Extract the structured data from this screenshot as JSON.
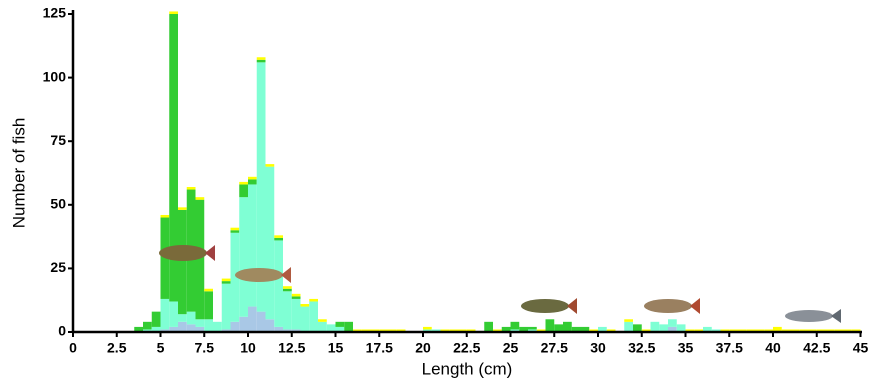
{
  "chart_data": {
    "type": "histogram",
    "stacked": true,
    "xlabel": "Length (cm)",
    "ylabel": "Number of fish",
    "bins": [
      0,
      0.5,
      1,
      1.5,
      2,
      2.5,
      3,
      3.5,
      4,
      4.5,
      5,
      5.5,
      6,
      6.5,
      7,
      7.5,
      8,
      8.5,
      9,
      9.5,
      10,
      10.5,
      11,
      11.5,
      12,
      12.5,
      13,
      13.5,
      14,
      14.5,
      15,
      15.5,
      16,
      16.5,
      17,
      17.5,
      18,
      18.5,
      19,
      19.5,
      20,
      20.5,
      21,
      21.5,
      22,
      22.5,
      23,
      23.5,
      24,
      24.5,
      25,
      25.5,
      26,
      26.5,
      27,
      27.5,
      28,
      28.5,
      29,
      29.5,
      30,
      30.5,
      31,
      31.5,
      32,
      32.5,
      33,
      33.5,
      34,
      34.5,
      35,
      35.5,
      36,
      36.5,
      37,
      37.5,
      38,
      38.5,
      39,
      39.5,
      40,
      40.5,
      41,
      41.5,
      42,
      42.5,
      43,
      43.5,
      44,
      44.5,
      45
    ],
    "series": [
      {
        "color": "#a9c8e6",
        "values": [
          0,
          0,
          0,
          0,
          0,
          0,
          0,
          0,
          0,
          0,
          1,
          2,
          4,
          3,
          2,
          0,
          0,
          1,
          4,
          6,
          10,
          8,
          5,
          2,
          1,
          1,
          0,
          0,
          0,
          0,
          0,
          0,
          0,
          0,
          0,
          0,
          0,
          0,
          0,
          0,
          0,
          0,
          0,
          0,
          0,
          0,
          0,
          0,
          0,
          0,
          0,
          0,
          0,
          0,
          0,
          0,
          0,
          0,
          0,
          0,
          0,
          0,
          0,
          0,
          0,
          0,
          0,
          0,
          2,
          0,
          0,
          0,
          0,
          0,
          0,
          0,
          0,
          0,
          0,
          0,
          0,
          0,
          0,
          0,
          0,
          0,
          0,
          0,
          0,
          0
        ]
      },
      {
        "color": "#7fffd4",
        "values": [
          0,
          0,
          0,
          0,
          0,
          0,
          0,
          0,
          1,
          2,
          12,
          10,
          3,
          5,
          3,
          5,
          4,
          18,
          35,
          47,
          48,
          98,
          60,
          34,
          15,
          12,
          10,
          12,
          4,
          3,
          2,
          0,
          0,
          0,
          0,
          0,
          0,
          0,
          0,
          0,
          1,
          1,
          0,
          0,
          0,
          0,
          0,
          0,
          0,
          0,
          1,
          0,
          1,
          0,
          0,
          0,
          0,
          0,
          0,
          0,
          2,
          0,
          0,
          4,
          0,
          0,
          4,
          3,
          3,
          3,
          0,
          0,
          2,
          1,
          0,
          0,
          0,
          0,
          0,
          0,
          0,
          0,
          0,
          0,
          0,
          0,
          0,
          0,
          0,
          0
        ]
      },
      {
        "color": "#33cc33",
        "values": [
          0,
          0,
          0,
          0,
          0,
          0,
          0,
          2,
          3,
          6,
          32,
          113,
          41,
          48,
          47,
          11,
          0,
          1,
          1,
          5,
          2,
          1,
          0,
          1,
          1,
          1,
          0,
          0,
          0,
          0,
          2,
          4,
          0,
          0,
          0,
          0,
          0,
          0,
          0,
          0,
          0,
          0,
          0,
          0,
          0,
          0,
          0,
          4,
          0,
          2,
          3,
          2,
          1,
          0,
          5,
          3,
          4,
          2,
          2,
          0,
          0,
          0,
          0,
          0,
          3,
          0,
          0,
          0,
          0,
          0,
          0,
          0,
          0,
          0,
          0,
          0,
          0,
          0,
          0,
          0,
          0,
          0,
          0,
          0,
          0,
          0,
          0,
          0,
          0,
          0
        ]
      },
      {
        "color": "#ffff00",
        "values": [
          0,
          0,
          0,
          0,
          0,
          0,
          0,
          0,
          0,
          0,
          1,
          1,
          1,
          1,
          1,
          1,
          0,
          1,
          1,
          1,
          1,
          1,
          1,
          1,
          1,
          1,
          1,
          1,
          1,
          0,
          0,
          0,
          1,
          1,
          1,
          1,
          1,
          1,
          0,
          0,
          1,
          0,
          1,
          1,
          1,
          1,
          0,
          0,
          1,
          0,
          0,
          0,
          0,
          1,
          0,
          0,
          0,
          0,
          0,
          1,
          0,
          1,
          0,
          1,
          0,
          1,
          0,
          0,
          0,
          0,
          1,
          1,
          0,
          0,
          1,
          1,
          1,
          1,
          1,
          1,
          2,
          1,
          1,
          1,
          1,
          1,
          1,
          1,
          1,
          1
        ]
      }
    ],
    "xlim": [
      0,
      45
    ],
    "ylim": [
      0,
      125
    ],
    "xticks": [
      0,
      2.5,
      5,
      7.5,
      10,
      12.5,
      15,
      17.5,
      20,
      22.5,
      25,
      27.5,
      30,
      32.5,
      35,
      37.5,
      40,
      42.5,
      45
    ],
    "yticks": [
      0,
      25,
      50,
      75,
      100,
      125
    ]
  }
}
